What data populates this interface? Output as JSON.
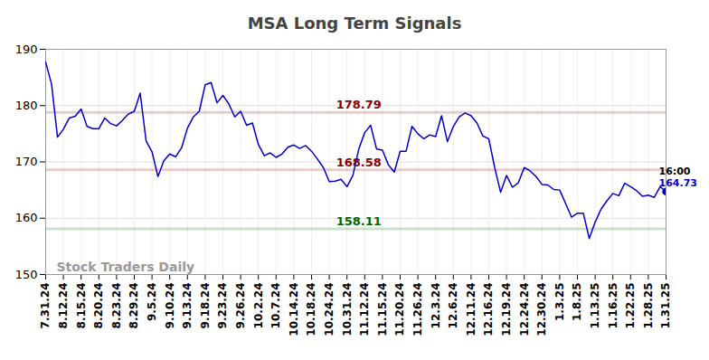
{
  "chart_data": {
    "type": "line",
    "title": "MSA Long Term Signals",
    "color": "#0000cc",
    "categories": [
      "7.31.24",
      null,
      null,
      "8.12.24",
      null,
      null,
      "8.15.24",
      null,
      null,
      "8.20.24",
      null,
      null,
      "8.23.24",
      null,
      null,
      "8.29.24",
      null,
      null,
      "9.5.24",
      null,
      null,
      "9.10.24",
      null,
      null,
      "9.13.24",
      null,
      null,
      "9.18.24",
      null,
      null,
      "9.23.24",
      null,
      null,
      "9.26.24",
      null,
      null,
      "10.2.24",
      null,
      null,
      "10.7.24",
      null,
      null,
      "10.14.24",
      null,
      null,
      "10.18.24",
      null,
      null,
      "10.24.24",
      null,
      null,
      "10.31.24",
      null,
      null,
      "11.12.24",
      null,
      null,
      "11.15.24",
      null,
      null,
      "11.20.24",
      null,
      null,
      "11.26.24",
      null,
      null,
      "12.3.24",
      null,
      null,
      "12.6.24",
      null,
      null,
      "12.11.24",
      null,
      null,
      "12.16.24",
      null,
      null,
      "12.19.24",
      null,
      null,
      "12.24.24",
      null,
      null,
      "12.30.24",
      null,
      null,
      "1.3.25",
      null,
      null,
      "1.8.25",
      null,
      null,
      "1.13.25",
      null,
      null,
      "1.16.25",
      null,
      null,
      "1.22.25",
      null,
      null,
      "1.28.25",
      null,
      null,
      "1.31.25"
    ],
    "values": [
      187.7,
      183.8,
      174.4,
      175.8,
      177.8,
      178.1,
      179.4,
      176.3,
      175.9,
      175.9,
      177.8,
      176.8,
      176.4,
      177.4,
      178.5,
      179.0,
      182.2,
      173.7,
      171.8,
      167.4,
      170.2,
      171.4,
      170.9,
      172.5,
      176.0,
      178.0,
      179.0,
      183.7,
      184.1,
      180.5,
      181.8,
      180.3,
      178.0,
      179.0,
      176.5,
      176.9,
      173.1,
      171.1,
      171.6,
      170.8,
      171.4,
      172.6,
      173.0,
      172.4,
      172.9,
      171.9,
      170.5,
      169.0,
      166.5,
      166.6,
      166.9,
      165.6,
      167.6,
      172.3,
      175.2,
      176.5,
      172.3,
      172.1,
      169.5,
      168.2,
      171.9,
      171.9,
      176.3,
      175.0,
      174.1,
      174.8,
      174.5,
      178.2,
      173.6,
      176.3,
      178.0,
      178.7,
      178.2,
      176.9,
      174.6,
      174.1,
      169.0,
      164.6,
      167.6,
      165.5,
      166.3,
      169.0,
      168.4,
      167.4,
      166.0,
      165.9,
      165.1,
      165.0,
      162.6,
      160.2,
      160.9,
      160.9,
      156.4,
      159.3,
      161.6,
      163.1,
      164.4,
      164.0,
      166.2,
      165.6,
      164.9,
      163.9,
      164.1,
      163.7,
      165.6,
      164.73
    ],
    "ylim": [
      150,
      190
    ],
    "yticks": [
      150,
      160,
      170,
      180,
      190
    ],
    "grid": true,
    "annotations": [
      {
        "value": 178.79,
        "label": "178.79",
        "color": "#8b0000"
      },
      {
        "value": 168.58,
        "label": "168.58",
        "color": "#8b0000"
      },
      {
        "value": 158.11,
        "label": "158.11",
        "color": "#006400"
      }
    ],
    "end_marker": {
      "time": "16:00",
      "value": 164.73
    },
    "watermark": "Stock Traders Daily"
  }
}
